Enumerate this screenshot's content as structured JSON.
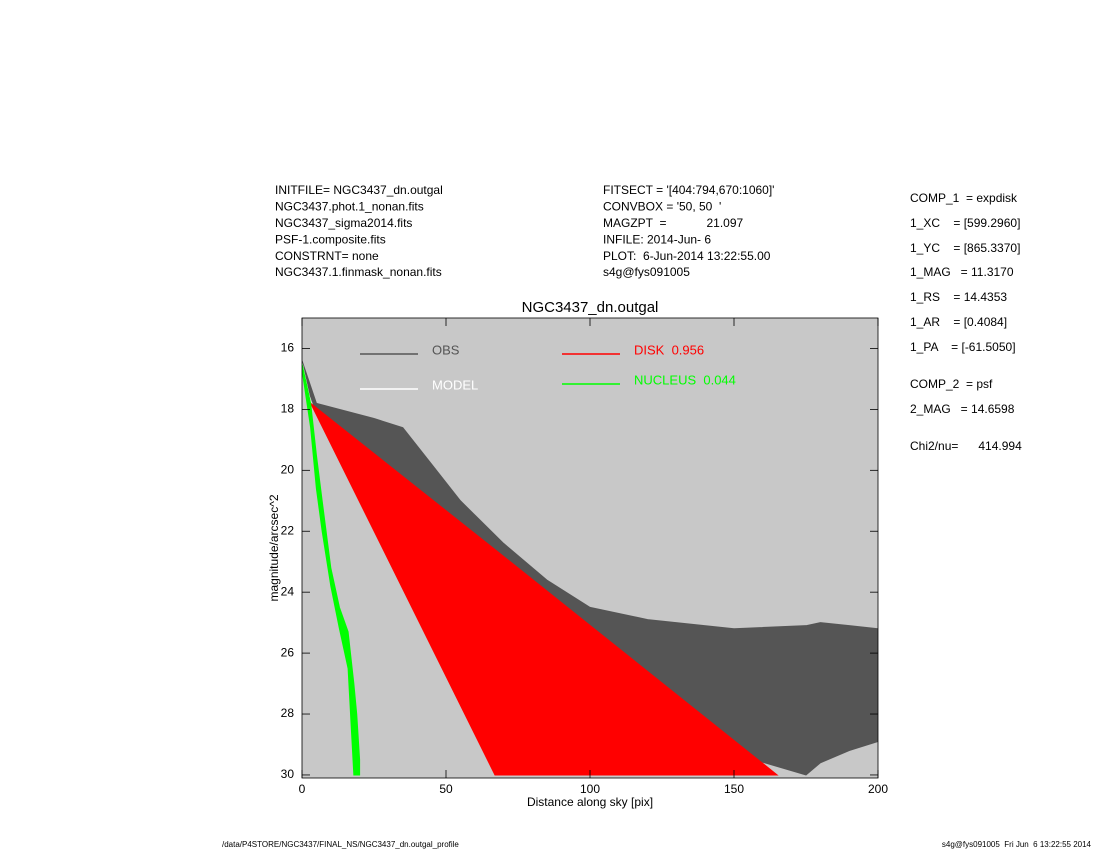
{
  "header": {
    "left": [
      "INITFILE= NGC3437_dn.outgal",
      "NGC3437.phot.1_nonan.fits",
      "NGC3437_sigma2014.fits",
      "PSF-1.composite.fits",
      "CONSTRNT= none",
      "NGC3437.1.finmask_nonan.fits"
    ],
    "middle": [
      "FITSECT = '[404:794,670:1060]'",
      "CONVBOX = '50, 50  '",
      "MAGZPT  =            21.097",
      "INFILE: 2014-Jun- 6",
      "PLOT:  6-Jun-2014 13:22:55.00",
      "s4g@fys091005"
    ],
    "right": [
      "COMP_1  = expdisk",
      "1_XC    = [599.2960]",
      "1_YC    = [865.3370]",
      "1_MAG   = 11.3170",
      "1_RS    = 14.4353",
      "1_AR    = [0.4084]",
      "1_PA    = [-61.5050]",
      "COMP_2  = psf",
      "2_MAG   = 14.6598",
      "Chi2/nu=      414.994"
    ]
  },
  "chart_data": {
    "type": "scatter",
    "title": "NGC3437_dn.outgal",
    "x_label": "Distance along sky [pix]",
    "y_label": "magnitude/arcsec^2",
    "xlim": [
      0,
      200
    ],
    "xticks": [
      0,
      50,
      100,
      150,
      200
    ],
    "ylim": [
      15,
      30.1
    ],
    "yticks": [
      16,
      18,
      20,
      22,
      24,
      26,
      28,
      30
    ],
    "y_inverted": true,
    "background": "#c8c8c8",
    "series": [
      {
        "name": "OBS",
        "color": "#555555",
        "x": [
          0,
          5,
          25,
          35,
          45,
          55,
          70,
          85,
          100,
          120,
          150,
          175,
          180,
          190,
          200
        ],
        "y_upper": [
          16.4,
          17.8,
          18.3,
          18.6,
          19.8,
          21.0,
          22.4,
          23.6,
          24.5,
          24.9,
          25.2,
          25.1,
          25.0,
          25.1,
          25.2
        ],
        "y_lower": [
          16.8,
          18.1,
          19.8,
          20.4,
          21.0,
          22.0,
          23.3,
          24.4,
          25.8,
          27.2,
          29.3,
          30.0,
          29.6,
          29.2,
          28.9
        ]
      },
      {
        "name": "MODEL",
        "color": "#ffffff",
        "x": [
          0,
          3
        ],
        "values": [
          16.5,
          17.8
        ]
      },
      {
        "name": "DISK  0.956",
        "color": "#ff0000",
        "x": [
          3,
          67,
          165
        ],
        "y_upper": [
          17.8,
          22.6,
          30
        ],
        "y_lower": [
          17.8,
          30,
          30
        ]
      },
      {
        "name": "NUCLEUS  0.044",
        "color": "#00ff00",
        "x": [
          0,
          3,
          5,
          7,
          10,
          13,
          16,
          18,
          19,
          20
        ],
        "y_upper": [
          16.5,
          17.8,
          19.5,
          21.0,
          23.2,
          24.5,
          25.3,
          27.0,
          28.0,
          29.5
        ],
        "y_lower": [
          16.7,
          18.6,
          20.6,
          22.0,
          23.8,
          25.2,
          26.5,
          30,
          30,
          30
        ]
      }
    ]
  },
  "footer": {
    "left": "/data/P4STORE/NGC3437/FINAL_NS/NGC3437_dn.outgal_profile",
    "right": "s4g@fys091005  Fri Jun  6 13:22:55 2014"
  }
}
